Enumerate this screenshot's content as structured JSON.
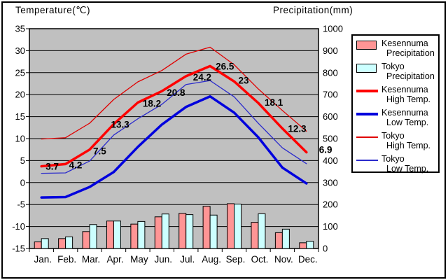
{
  "titles": {
    "left": "Temperature(℃)",
    "right": "Precipitation(mm)"
  },
  "legend": {
    "items": [
      {
        "name": "kesennuma-precipitation",
        "line1": "Kesennuma",
        "line2": "Precipitation",
        "swatch": "bar",
        "color": "#ff9595"
      },
      {
        "name": "tokyo-precipitation",
        "line1": "Tokyo",
        "line2": "Precipitation",
        "swatch": "bar",
        "color": "#ccffff"
      },
      {
        "name": "kesennuma-high-temp",
        "line1": "Kesennuma",
        "line2": "High Temp.",
        "swatch": "thick-line",
        "color": "#ff0000"
      },
      {
        "name": "kesennuma-low-temp",
        "line1": "Kesennuma",
        "line2": "Low Temp.",
        "swatch": "thick-line",
        "color": "#0000dd"
      },
      {
        "name": "tokyo-high-temp",
        "line1": "Tokyo",
        "line2": "High Temp.",
        "swatch": "thin-line",
        "color": "#e00000"
      },
      {
        "name": "tokyo-low-temp",
        "line1": "Tokyo",
        "line2": "Low Temp.",
        "swatch": "thin-line",
        "color": "#2b2bcc"
      }
    ]
  },
  "chart_data": {
    "type": "combo-bar-line",
    "title": "",
    "categories": [
      "Jan.",
      "Feb.",
      "Mar.",
      "Apr.",
      "May",
      "Jun.",
      "Jul.",
      "Aug.",
      "Sep.",
      "Oct.",
      "Nov.",
      "Dec."
    ],
    "temp_axis": {
      "title": "Temperature(℃)",
      "min": -15,
      "max": 35,
      "step": 5,
      "ticks": [
        "35",
        "30",
        "25",
        "20",
        "15",
        "10",
        "5",
        "0",
        "-5",
        "-10",
        "-15"
      ]
    },
    "precip_axis": {
      "title": "Precipitation(mm)",
      "min": 0,
      "max": 1000,
      "step": 100,
      "ticks": [
        "1000",
        "900",
        "800",
        "700",
        "600",
        "500",
        "400",
        "300",
        "200",
        "100",
        "0"
      ]
    },
    "plot_background": "#c0c0c0",
    "grid": true,
    "legend_position": "right",
    "series": [
      {
        "name": "Kesennuma Precipitation",
        "type": "bar",
        "unit": "mm",
        "color": "#ff9595",
        "values": [
          30,
          45,
          77,
          125,
          111,
          144,
          160,
          192,
          204,
          119,
          72,
          26
        ]
      },
      {
        "name": "Tokyo Precipitation",
        "type": "bar",
        "unit": "mm",
        "color": "#ccffff",
        "values": [
          45,
          53,
          109,
          125,
          123,
          157,
          154,
          152,
          202,
          158,
          88,
          33
        ]
      },
      {
        "name": "Kesennuma High Temp.",
        "type": "line",
        "unit": "°C",
        "color": "#ff0000",
        "thickness": "thick",
        "values": [
          3.7,
          4.2,
          7.5,
          13.3,
          18.2,
          20.8,
          24.2,
          26.5,
          23,
          18.1,
          12.3,
          6.9
        ],
        "point_labels": [
          "3.7",
          "4.2",
          "7.5",
          "13.3",
          "18.2",
          "20.8",
          "24.2",
          "26.5",
          "23",
          "18.1",
          "12.3",
          "6.9"
        ]
      },
      {
        "name": "Kesennuma Low Temp.",
        "type": "line",
        "unit": "°C",
        "color": "#0000dd",
        "thickness": "thick",
        "values": [
          -3.4,
          -3.3,
          -1.0,
          2.4,
          8.1,
          13.2,
          17.2,
          19.6,
          15.9,
          10.3,
          3.4,
          -0.2
        ]
      },
      {
        "name": "Tokyo High Temp.",
        "type": "line",
        "unit": "°C",
        "color": "#e00000",
        "thickness": "thin",
        "values": [
          9.9,
          10.2,
          13.5,
          18.9,
          22.9,
          25.5,
          29.2,
          30.8,
          26.8,
          21.3,
          16.4,
          11.7
        ]
      },
      {
        "name": "Tokyo Low Temp.",
        "type": "line",
        "unit": "°C",
        "color": "#2b2bcc",
        "thickness": "thin",
        "values": [
          2.1,
          2.2,
          4.9,
          10.8,
          14.5,
          17.8,
          22.3,
          23.2,
          19.5,
          13.5,
          7.9,
          4.3
        ]
      }
    ]
  }
}
